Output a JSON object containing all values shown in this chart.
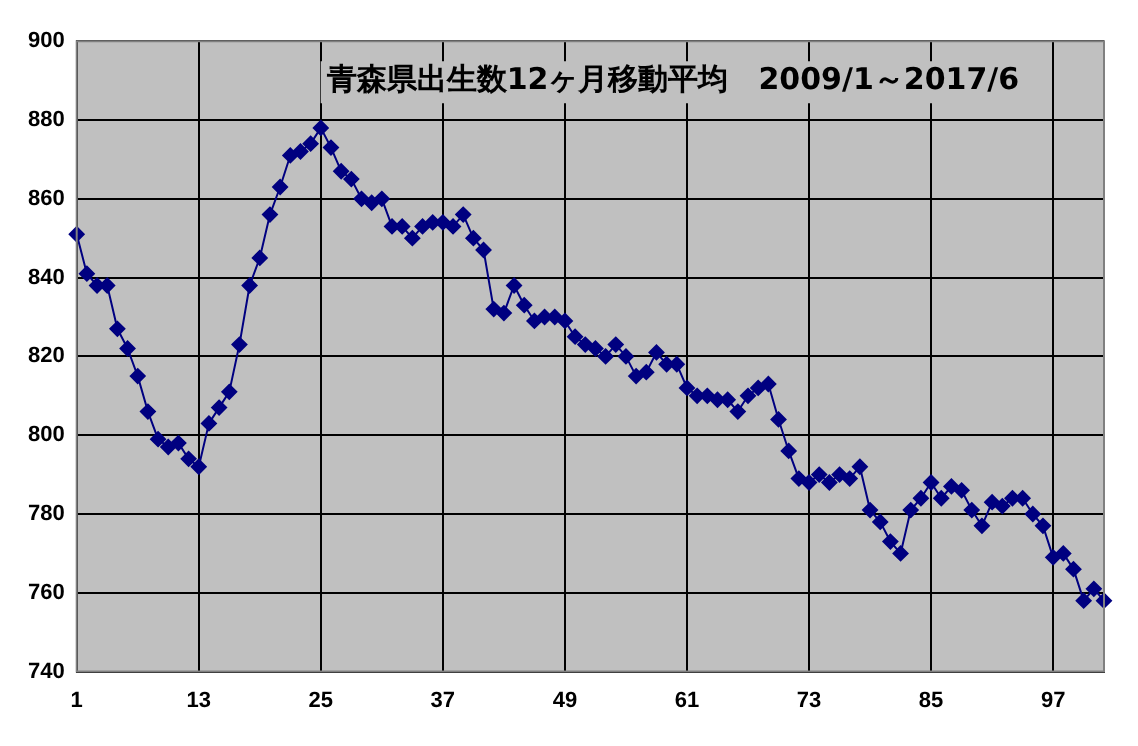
{
  "chart_data": {
    "type": "line",
    "title": "青森県出生数12ヶ月移動平均　2009/1～2017/6",
    "categories": [
      "1",
      null,
      null,
      null,
      null,
      null,
      null,
      null,
      null,
      null,
      null,
      null,
      "13",
      null,
      null,
      null,
      null,
      null,
      null,
      null,
      null,
      null,
      null,
      null,
      "25",
      null,
      null,
      null,
      null,
      null,
      null,
      null,
      null,
      null,
      null,
      null,
      "37",
      null,
      null,
      null,
      null,
      null,
      null,
      null,
      null,
      null,
      null,
      null,
      "49",
      null,
      null,
      null,
      null,
      null,
      null,
      null,
      null,
      null,
      null,
      null,
      "61",
      null,
      null,
      null,
      null,
      null,
      null,
      null,
      null,
      null,
      null,
      null,
      "73",
      null,
      null,
      null,
      null,
      null,
      null,
      null,
      null,
      null,
      null,
      null,
      "85",
      null,
      null,
      null,
      null,
      null,
      null,
      null,
      null,
      null,
      null,
      null,
      "97",
      null,
      null,
      null,
      null,
      null
    ],
    "series": [
      {
        "color": "#000080",
        "values": [
          851,
          841,
          838,
          838,
          827,
          822,
          815,
          806,
          799,
          797,
          798,
          794,
          792,
          803,
          807,
          811,
          823,
          838,
          845,
          856,
          863,
          871,
          872,
          874,
          878,
          873,
          867,
          865,
          860,
          859,
          860,
          853,
          853,
          850,
          853,
          854,
          854,
          853,
          856,
          850,
          847,
          832,
          831,
          838,
          833,
          829,
          830,
          830,
          829,
          825,
          823,
          822,
          820,
          823,
          820,
          815,
          816,
          821,
          818,
          818,
          812,
          810,
          810,
          809,
          809,
          806,
          810,
          812,
          813,
          804,
          796,
          789,
          788,
          790,
          788,
          790,
          789,
          792,
          781,
          778,
          773,
          770,
          781,
          784,
          788,
          784,
          787,
          786,
          781,
          777,
          783,
          782,
          784,
          784,
          780,
          777,
          769,
          770,
          766,
          758,
          761,
          758
        ]
      }
    ],
    "ylim": [
      740,
      900
    ],
    "yticks": [
      740,
      760,
      780,
      800,
      820,
      840,
      860,
      880,
      900
    ],
    "grid": true,
    "legend": false,
    "marker": "diamond",
    "line_style": "solid"
  }
}
